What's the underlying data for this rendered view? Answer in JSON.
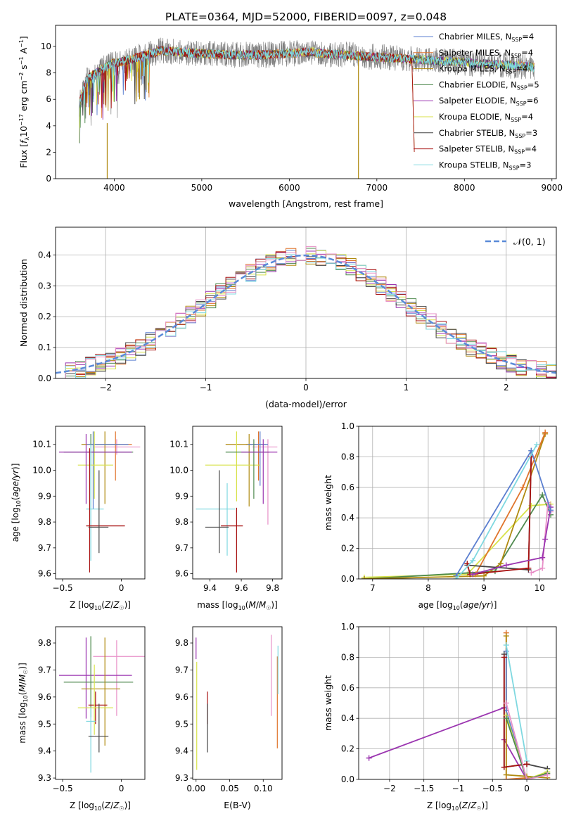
{
  "title": "PLATE=0364, MJD=52000, FIBERID=0097, z=0.048",
  "colors": {
    "Chabrier MILES": "#5b7fd0",
    "Salpeter MILES": "#e0742c",
    "Kroupa MILES": "#b08a10",
    "Chabrier ELODIE": "#4f8a4f",
    "Salpeter ELODIE": "#9b35b0",
    "Kroupa ELODIE": "#d8e24a",
    "Chabrier STELIB": "#444444",
    "Salpeter STELIB": "#a81212",
    "Kroupa STELIB": "#7fd8e0",
    "Pink": "#e890c8",
    "Data": "#808080"
  },
  "chart_data": [
    {
      "id": "spectrum",
      "type": "line",
      "xlabel": "wavelength [Angstrom, rest frame]",
      "ylabel": "Flux [f_λ 10^-17 erg cm^-2 s^-1 A^-1]",
      "xlim": [
        3330,
        9050
      ],
      "ylim": [
        0,
        11.6
      ],
      "xticks": [
        4000,
        5000,
        6000,
        7000,
        8000,
        9000
      ],
      "yticks": [
        0,
        2,
        4,
        6,
        8,
        10
      ],
      "legend": [
        {
          "name": "Chabrier MILES",
          "nssp": "4",
          "sub": "SSP"
        },
        {
          "name": "Salpeter MILES",
          "nssp": "4",
          "sub": "SSP"
        },
        {
          "name": "Kroupa MILES",
          "nssp": "4",
          "sub": "SSP"
        },
        {
          "name": "Chabrier ELODIE",
          "nssp": "5",
          "sub": "SSP"
        },
        {
          "name": "Salpeter ELODIE",
          "nssp": "6",
          "sub": "SSP"
        },
        {
          "name": "Kroupa ELODIE",
          "nssp": "4",
          "sub": "SSP"
        },
        {
          "name": "Chabrier STELIB",
          "nssp": "3",
          "sub": "SSP"
        },
        {
          "name": "Salpeter STELIB",
          "nssp": "4",
          "sub": "SSP"
        },
        {
          "name": "Kroupa STELIB",
          "nssp": "3",
          "sub": "SSP"
        }
      ]
    },
    {
      "id": "residuals",
      "type": "bar",
      "xlabel": "(data-model)/error",
      "ylabel": "Normed distribution",
      "xlim": [
        -2.5,
        2.5
      ],
      "ylim": [
        0,
        0.49
      ],
      "xticks": [
        -2,
        -1,
        0,
        1,
        2
      ],
      "yticks": [
        0.0,
        0.1,
        0.2,
        0.3,
        0.4
      ],
      "legend": "𝒩(0, 1)",
      "grid": true
    },
    {
      "id": "age_vs_Z",
      "type": "scatter",
      "xlabel": "Z [log10(Z/Z☉)]",
      "ylabel": "age  [log10(age/yr)]",
      "xlim": [
        -0.56,
        0.2
      ],
      "ylim": [
        9.58,
        10.17
      ],
      "xticks": [
        -0.5,
        0.0
      ],
      "yticks": [
        9.6,
        9.7,
        9.8,
        9.9,
        10.0,
        10.1
      ],
      "errorbars": [
        {
          "model": "Pink",
          "x": -0.04,
          "xerr": [
            0.2,
            0.2
          ],
          "y": 10.09,
          "yerr": [
            0.03,
            0.03
          ]
        },
        {
          "model": "Salpeter MILES",
          "x": -0.05,
          "xerr": [
            0.22,
            0.14
          ],
          "y": 10.1,
          "yerr": [
            0.14,
            0.05
          ]
        },
        {
          "model": "Kroupa MILES",
          "x": -0.14,
          "xerr": [
            0.2,
            0.13
          ],
          "y": 10.1,
          "yerr": [
            0.23,
            0.05
          ]
        },
        {
          "model": "Chabrier MILES",
          "x": -0.24,
          "xerr": [
            0.05,
            0.3
          ],
          "y": 10.1,
          "yerr": [
            0.25,
            0.05
          ]
        },
        {
          "model": "Kroupa ELODIE",
          "x": -0.23,
          "xerr": [
            0.14,
            0.16
          ],
          "y": 10.02,
          "yerr": [
            0.13,
            0.13
          ]
        },
        {
          "model": "Chabrier ELODIE",
          "x": -0.26,
          "xerr": [
            0.23,
            0.36
          ],
          "y": 10.07,
          "yerr": [
            0.05,
            0.07
          ]
        },
        {
          "model": "Salpeter ELODIE",
          "x": -0.3,
          "xerr": [
            0.23,
            0.39
          ],
          "y": 10.07,
          "yerr": [
            0.2,
            0.07
          ]
        },
        {
          "model": "Kroupa STELIB",
          "x": -0.26,
          "xerr": [
            0.04,
            0.11
          ],
          "y": 9.85,
          "yerr": [
            0.2,
            0.25
          ]
        },
        {
          "model": "Salpeter STELIB",
          "x": -0.27,
          "xerr": [
            0.03,
            0.3
          ],
          "y": 9.785,
          "yerr": [
            0.18,
            0.3
          ]
        },
        {
          "model": "Chabrier STELIB",
          "x": -0.19,
          "xerr": [
            0.09,
            0.08
          ],
          "y": 9.78,
          "yerr": [
            0.1,
            0.22
          ]
        }
      ]
    },
    {
      "id": "age_vs_mass",
      "type": "scatter",
      "xlabel": "mass [log10(M/M☉)]",
      "ylabel": "",
      "xlim": [
        9.29,
        9.86
      ],
      "ylim": [
        9.58,
        10.17
      ],
      "xticks": [
        9.4,
        9.6,
        9.8
      ],
      "yticks": [
        9.6,
        9.7,
        9.8,
        9.9,
        10.0,
        10.1
      ],
      "errorbars": [
        {
          "model": "Pink",
          "x": 9.77,
          "xerr": [
            0.1,
            0.06
          ],
          "y": 10.09,
          "yerr": [
            0.3,
            0.03
          ]
        },
        {
          "model": "Salpeter MILES",
          "x": 9.71,
          "xerr": [
            0.08,
            0.05
          ],
          "y": 10.1,
          "yerr": [
            0.14,
            0.05
          ]
        },
        {
          "model": "Kroupa MILES",
          "x": 9.65,
          "xerr": [
            0.15,
            0.05
          ],
          "y": 10.1,
          "yerr": [
            0.24,
            0.04
          ]
        },
        {
          "model": "Chabrier MILES",
          "x": 9.72,
          "xerr": [
            0.08,
            0.05
          ],
          "y": 10.1,
          "yerr": [
            0.16,
            0.05
          ]
        },
        {
          "model": "Kroupa ELODIE",
          "x": 9.57,
          "xerr": [
            0.2,
            0.15
          ],
          "y": 10.02,
          "yerr": [
            0.14,
            0.13
          ]
        },
        {
          "model": "Chabrier ELODIE",
          "x": 9.68,
          "xerr": [
            0.18,
            0.1
          ],
          "y": 10.07,
          "yerr": [
            0.18,
            0.05
          ]
        },
        {
          "model": "Salpeter ELODIE",
          "x": 9.74,
          "xerr": [
            0.14,
            0.09
          ],
          "y": 10.07,
          "yerr": [
            0.2,
            0.05
          ]
        },
        {
          "model": "Kroupa STELIB",
          "x": 9.51,
          "xerr": [
            0.2,
            0.05
          ],
          "y": 9.85,
          "yerr": [
            0.18,
            0.1
          ]
        },
        {
          "model": "Salpeter STELIB",
          "x": 9.57,
          "xerr": [
            0.1,
            0.04
          ],
          "y": 9.785,
          "yerr": [
            0.18,
            0.07
          ]
        },
        {
          "model": "Chabrier STELIB",
          "x": 9.46,
          "xerr": [
            0.09,
            0.06
          ],
          "y": 9.78,
          "yerr": [
            0.1,
            0.22
          ]
        }
      ]
    },
    {
      "id": "mass_weight_vs_age",
      "type": "line",
      "xlabel": "age  [log10(age/yr)]",
      "ylabel": "mass weight",
      "xlim": [
        6.75,
        10.3
      ],
      "ylim": [
        0,
        1.0
      ],
      "xticks": [
        7,
        8,
        9,
        10
      ],
      "yticks": [
        0.0,
        0.2,
        0.4,
        0.6,
        0.8,
        1.0
      ],
      "grid": true,
      "series": [
        {
          "model": "Kroupa ELODIE",
          "x": [
            6.85,
            8.7,
            9.85,
            10.2
          ],
          "y": [
            0.01,
            0.03,
            0.48,
            0.49
          ]
        },
        {
          "model": "Chabrier ELODIE",
          "x": [
            6.85,
            8.75,
            9.2,
            10.05,
            10.2
          ],
          "y": [
            0.0,
            0.04,
            0.05,
            0.55,
            0.42
          ]
        },
        {
          "model": "Kroupa MILES",
          "x": [
            6.85,
            9.0,
            9.3,
            10.1
          ],
          "y": [
            0.0,
            0.02,
            0.1,
            0.95
          ]
        },
        {
          "model": "Salpeter MILES",
          "x": [
            8.85,
            9.7,
            10.1
          ],
          "y": [
            0.03,
            0.6,
            0.96
          ]
        },
        {
          "model": "Pink",
          "x": [
            9.85,
            10.05,
            10.15,
            10.2
          ],
          "y": [
            0.04,
            0.07,
            0.5,
            0.44
          ]
        },
        {
          "model": "Chabrier STELIB",
          "x": [
            8.7,
            9.8,
            9.85
          ],
          "y": [
            0.09,
            0.06,
            0.84
          ]
        },
        {
          "model": "Salpeter STELIB",
          "x": [
            8.7,
            8.75,
            9.8,
            9.85
          ],
          "y": [
            0.1,
            0.03,
            0.07,
            0.8
          ]
        },
        {
          "model": "Salpeter ELODIE",
          "x": [
            8.8,
            9.4,
            10.05,
            10.1,
            10.2
          ],
          "y": [
            0.03,
            0.09,
            0.14,
            0.26,
            0.47
          ]
        },
        {
          "model": "Chabrier MILES",
          "x": [
            8.5,
            9.85,
            10.2
          ],
          "y": [
            0.02,
            0.84,
            0.45
          ]
        },
        {
          "model": "Kroupa STELIB",
          "x": [
            8.5,
            8.8,
            9.95
          ],
          "y": [
            0.0,
            0.12,
            0.88
          ]
        }
      ]
    },
    {
      "id": "mass_vs_Z",
      "type": "scatter",
      "xlabel": "Z [log10(Z/Z☉)]",
      "ylabel": "mass [log10(M/M☉)]",
      "xlim": [
        -0.56,
        0.2
      ],
      "ylim": [
        9.295,
        9.86
      ],
      "xticks": [
        -0.5,
        0.0
      ],
      "yticks": [
        9.3,
        9.4,
        9.5,
        9.6,
        9.7,
        9.8
      ],
      "errorbars": [
        {
          "model": "Pink",
          "x": -0.04,
          "xerr": [
            0.2,
            0.24
          ],
          "y": 9.75,
          "yerr": [
            0.22,
            0.06
          ]
        },
        {
          "model": "Salpeter ELODIE",
          "x": -0.3,
          "xerr": [
            0.23,
            0.39
          ],
          "y": 9.68,
          "yerr": [
            0.16,
            0.14
          ]
        },
        {
          "model": "Chabrier ELODIE",
          "x": -0.26,
          "xerr": [
            0.23,
            0.36
          ],
          "y": 9.655,
          "yerr": [
            0.13,
            0.17
          ]
        },
        {
          "model": "Kroupa MILES",
          "x": -0.14,
          "xerr": [
            0.2,
            0.13
          ],
          "y": 9.63,
          "yerr": [
            0.21,
            0.19
          ]
        },
        {
          "model": "Salpeter STELIB",
          "x": -0.22,
          "xerr": [
            0.06,
            0.1
          ],
          "y": 9.57,
          "yerr": [
            0.07,
            0.05
          ]
        },
        {
          "model": "Kroupa ELODIE",
          "x": -0.23,
          "xerr": [
            0.14,
            0.16
          ],
          "y": 9.56,
          "yerr": [
            0.1,
            0.16
          ]
        },
        {
          "model": "Kroupa STELIB",
          "x": -0.26,
          "xerr": [
            0.04,
            0.04
          ],
          "y": 9.51,
          "yerr": [
            0.19,
            0.05
          ]
        },
        {
          "model": "Chabrier STELIB",
          "x": -0.19,
          "xerr": [
            0.09,
            0.08
          ],
          "y": 9.455,
          "yerr": [
            0.06,
            0.12
          ]
        }
      ]
    },
    {
      "id": "mass_vs_EBV",
      "type": "scatter",
      "xlabel": "E(B-V)",
      "ylabel": "",
      "xlim": [
        -0.005,
        0.128
      ],
      "ylim": [
        9.295,
        9.86
      ],
      "xticks": [
        0.0,
        0.05,
        0.1
      ],
      "xticklabels": [
        "0.00",
        "0.05",
        "0.10"
      ],
      "yticks": [
        9.3,
        9.4,
        9.5,
        9.6,
        9.7,
        9.8
      ],
      "errorbars": [
        {
          "model": "Salpeter ELODIE",
          "x": 0.0,
          "y": 9.79,
          "yerr": [
            0.05,
            0.03
          ]
        },
        {
          "model": "Kroupa ELODIE",
          "x": 0.001,
          "y": 9.53,
          "yerr": [
            0.2,
            0.2
          ]
        },
        {
          "model": "Salpeter STELIB",
          "x": 0.017,
          "y": 9.56,
          "yerr": [
            0.06,
            0.06
          ]
        },
        {
          "model": "Chabrier STELIB",
          "x": 0.017,
          "y": 9.455,
          "yerr": [
            0.06,
            0.12
          ]
        },
        {
          "model": "Pink",
          "x": 0.112,
          "y": 9.68,
          "yerr": [
            0.15,
            0.15
          ]
        },
        {
          "model": "Salpeter MILES",
          "x": 0.121,
          "y": 9.58,
          "yerr": [
            0.17,
            0.17
          ]
        },
        {
          "model": "Kroupa STELIB",
          "x": 0.122,
          "y": 9.7,
          "yerr": [
            0.09,
            0.09
          ]
        }
      ]
    },
    {
      "id": "mass_weight_vs_Z",
      "type": "line",
      "xlabel": "Z [log10(Z/Z☉)]",
      "ylabel": "mass weight",
      "xlim": [
        -2.45,
        0.43
      ],
      "ylim": [
        0,
        1.0
      ],
      "xticks": [
        -2.0,
        -1.5,
        -1.0,
        -0.5,
        0.0
      ],
      "yticks": [
        0.0,
        0.2,
        0.4,
        0.6,
        0.8,
        1.0
      ],
      "grid": true,
      "series": [
        {
          "model": "Salpeter ELODIE",
          "x": [
            -2.3,
            -0.33,
            -0.33,
            0.0
          ],
          "y": [
            0.14,
            0.47,
            0.26,
            0.0
          ]
        },
        {
          "model": "Salpeter MILES",
          "x": [
            -0.3,
            -0.3,
            0.0
          ],
          "y": [
            0.96,
            0.0,
            0.01
          ]
        },
        {
          "model": "Kroupa MILES",
          "x": [
            -0.3,
            -0.3,
            0.0,
            0.3
          ],
          "y": [
            0.94,
            0.03,
            0.02,
            0.01
          ]
        },
        {
          "model": "Chabrier MILES",
          "x": [
            -0.3,
            -0.3,
            0.0
          ],
          "y": [
            0.84,
            0.45,
            0.0
          ]
        },
        {
          "model": "Kroupa STELIB",
          "x": [
            -0.3,
            0.0
          ],
          "y": [
            0.88,
            0.12
          ]
        },
        {
          "model": "Chabrier STELIB",
          "x": [
            -0.33,
            -0.33,
            0.0,
            0.3
          ],
          "y": [
            0.82,
            0.08,
            0.1,
            0.07
          ]
        },
        {
          "model": "Salpeter STELIB",
          "x": [
            -0.33,
            -0.33,
            0.0
          ],
          "y": [
            0.8,
            0.08,
            0.1
          ]
        },
        {
          "model": "Kroupa ELODIE",
          "x": [
            -0.3,
            0.0,
            0.3
          ],
          "y": [
            0.42,
            0.0,
            0.05
          ]
        },
        {
          "model": "Chabrier ELODIE",
          "x": [
            -0.3,
            0.0,
            0.3
          ],
          "y": [
            0.4,
            0.0,
            0.04
          ]
        },
        {
          "model": "Pink",
          "x": [
            -0.3,
            0.0,
            0.3
          ],
          "y": [
            0.5,
            0.0,
            0.03
          ]
        }
      ]
    }
  ]
}
